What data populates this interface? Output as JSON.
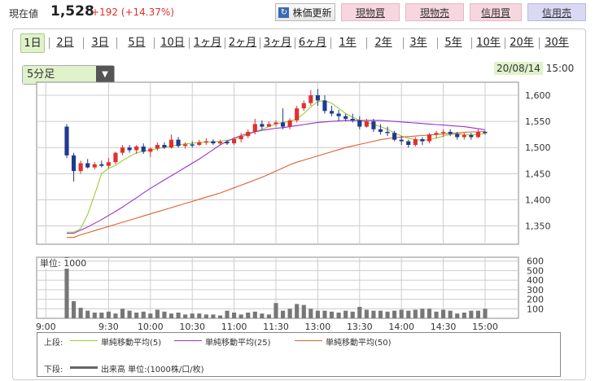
{
  "header": {
    "price_label": "現在値",
    "price": "1,528",
    "change": "+192 (+14.37%)",
    "buttons": {
      "refresh": "株価更新",
      "buy_cash": "現物買",
      "sell_cash": "現物売",
      "buy_margin": "信用買",
      "sell_margin": "信用売"
    }
  },
  "tabs": [
    "1日",
    "2日",
    "3日",
    "5日",
    "10日",
    "1ヶ月",
    "2ヶ月",
    "3ヶ月",
    "6ヶ月",
    "1年",
    "2年",
    "3年",
    "5年",
    "10年",
    "20年",
    "30年"
  ],
  "interval": "5分足",
  "date": "20/08/14",
  "time": "15:00",
  "legend": {
    "upper_label": "上段:",
    "lower_label": "下段:",
    "ma5": "単純移動平均(5)",
    "ma25": "単純移動平均(25)",
    "ma50": "単純移動平均(50)",
    "volume": "出来高 単位:(1000株/口/枚)"
  },
  "colors": {
    "up": "#e03030",
    "down": "#1f3a8f",
    "ma5": "#9acd32",
    "ma25": "#9932cc",
    "ma50": "#e06030",
    "volume": "#777777"
  },
  "chart_data": {
    "type": "candlestick",
    "x_ticks": [
      "9:00",
      "9:30",
      "10:00",
      "10:30",
      "11:00",
      "11:30",
      "13:00",
      "13:30",
      "14:00",
      "14:30",
      "15:00"
    ],
    "price_axis": {
      "ticks": [
        1350,
        1400,
        1450,
        1500,
        1550,
        1600
      ],
      "range": [
        1315,
        1625
      ]
    },
    "volume_axis": {
      "ticks": [
        100,
        200,
        300,
        400,
        500,
        600
      ],
      "range": [
        0,
        640
      ],
      "unit_label": "単位: 1000"
    },
    "candles": [
      {
        "t": "9:05",
        "o": 1540,
        "h": 1545,
        "l": 1480,
        "c": 1485
      },
      {
        "t": "9:10",
        "o": 1485,
        "h": 1490,
        "l": 1435,
        "c": 1455
      },
      {
        "t": "9:15",
        "o": 1455,
        "h": 1475,
        "l": 1450,
        "c": 1470
      },
      {
        "t": "9:20",
        "o": 1470,
        "h": 1478,
        "l": 1460,
        "c": 1462
      },
      {
        "t": "9:25",
        "o": 1462,
        "h": 1472,
        "l": 1458,
        "c": 1468
      },
      {
        "t": "9:30",
        "o": 1468,
        "h": 1475,
        "l": 1462,
        "c": 1465
      },
      {
        "t": "9:35",
        "o": 1465,
        "h": 1480,
        "l": 1460,
        "c": 1472
      },
      {
        "t": "9:40",
        "o": 1472,
        "h": 1492,
        "l": 1468,
        "c": 1490
      },
      {
        "t": "9:45",
        "o": 1490,
        "h": 1505,
        "l": 1485,
        "c": 1500
      },
      {
        "t": "9:50",
        "o": 1500,
        "h": 1505,
        "l": 1490,
        "c": 1495
      },
      {
        "t": "9:55",
        "o": 1495,
        "h": 1505,
        "l": 1488,
        "c": 1502
      },
      {
        "t": "10:00",
        "o": 1502,
        "h": 1508,
        "l": 1488,
        "c": 1492
      },
      {
        "t": "10:05",
        "o": 1492,
        "h": 1500,
        "l": 1482,
        "c": 1498
      },
      {
        "t": "10:10",
        "o": 1498,
        "h": 1510,
        "l": 1494,
        "c": 1505
      },
      {
        "t": "10:15",
        "o": 1505,
        "h": 1510,
        "l": 1497,
        "c": 1500
      },
      {
        "t": "10:20",
        "o": 1500,
        "h": 1525,
        "l": 1498,
        "c": 1515
      },
      {
        "t": "10:25",
        "o": 1515,
        "h": 1520,
        "l": 1500,
        "c": 1503
      },
      {
        "t": "10:30",
        "o": 1503,
        "h": 1510,
        "l": 1498,
        "c": 1506
      },
      {
        "t": "10:35",
        "o": 1506,
        "h": 1512,
        "l": 1500,
        "c": 1505
      },
      {
        "t": "10:40",
        "o": 1505,
        "h": 1515,
        "l": 1503,
        "c": 1510
      },
      {
        "t": "10:45",
        "o": 1510,
        "h": 1518,
        "l": 1505,
        "c": 1512
      },
      {
        "t": "10:50",
        "o": 1512,
        "h": 1516,
        "l": 1505,
        "c": 1508
      },
      {
        "t": "10:55",
        "o": 1508,
        "h": 1515,
        "l": 1505,
        "c": 1511
      },
      {
        "t": "11:00",
        "o": 1511,
        "h": 1514,
        "l": 1505,
        "c": 1508
      },
      {
        "t": "11:05",
        "o": 1508,
        "h": 1520,
        "l": 1505,
        "c": 1516
      },
      {
        "t": "11:10",
        "o": 1516,
        "h": 1528,
        "l": 1510,
        "c": 1522
      },
      {
        "t": "11:15",
        "o": 1522,
        "h": 1535,
        "l": 1518,
        "c": 1530
      },
      {
        "t": "11:20",
        "o": 1530,
        "h": 1555,
        "l": 1525,
        "c": 1545
      },
      {
        "t": "11:25",
        "o": 1545,
        "h": 1552,
        "l": 1535,
        "c": 1540
      },
      {
        "t": "11:30",
        "o": 1540,
        "h": 1550,
        "l": 1540,
        "c": 1545
      },
      {
        "t": "12:30",
        "o": 1545,
        "h": 1552,
        "l": 1540,
        "c": 1548
      },
      {
        "t": "12:35",
        "o": 1548,
        "h": 1575,
        "l": 1535,
        "c": 1540
      },
      {
        "t": "12:40",
        "o": 1540,
        "h": 1556,
        "l": 1535,
        "c": 1552
      },
      {
        "t": "12:45",
        "o": 1552,
        "h": 1580,
        "l": 1548,
        "c": 1575
      },
      {
        "t": "12:50",
        "o": 1575,
        "h": 1590,
        "l": 1570,
        "c": 1585
      },
      {
        "t": "12:55",
        "o": 1585,
        "h": 1610,
        "l": 1580,
        "c": 1600
      },
      {
        "t": "13:00",
        "o": 1600,
        "h": 1612,
        "l": 1580,
        "c": 1590
      },
      {
        "t": "13:05",
        "o": 1590,
        "h": 1600,
        "l": 1565,
        "c": 1570
      },
      {
        "t": "13:10",
        "o": 1570,
        "h": 1580,
        "l": 1560,
        "c": 1565
      },
      {
        "t": "13:15",
        "o": 1565,
        "h": 1572,
        "l": 1550,
        "c": 1560
      },
      {
        "t": "13:20",
        "o": 1560,
        "h": 1565,
        "l": 1550,
        "c": 1555
      },
      {
        "t": "13:25",
        "o": 1555,
        "h": 1565,
        "l": 1548,
        "c": 1552
      },
      {
        "t": "13:30",
        "o": 1552,
        "h": 1560,
        "l": 1535,
        "c": 1540
      },
      {
        "t": "13:35",
        "o": 1540,
        "h": 1555,
        "l": 1538,
        "c": 1550
      },
      {
        "t": "13:40",
        "o": 1550,
        "h": 1555,
        "l": 1530,
        "c": 1535
      },
      {
        "t": "13:45",
        "o": 1535,
        "h": 1545,
        "l": 1525,
        "c": 1530
      },
      {
        "t": "13:50",
        "o": 1530,
        "h": 1540,
        "l": 1522,
        "c": 1528
      },
      {
        "t": "13:55",
        "o": 1528,
        "h": 1532,
        "l": 1512,
        "c": 1515
      },
      {
        "t": "14:00",
        "o": 1515,
        "h": 1522,
        "l": 1505,
        "c": 1512
      },
      {
        "t": "14:05",
        "o": 1512,
        "h": 1515,
        "l": 1500,
        "c": 1505
      },
      {
        "t": "14:10",
        "o": 1505,
        "h": 1520,
        "l": 1502,
        "c": 1516
      },
      {
        "t": "14:15",
        "o": 1516,
        "h": 1520,
        "l": 1505,
        "c": 1512
      },
      {
        "t": "14:20",
        "o": 1512,
        "h": 1528,
        "l": 1508,
        "c": 1525
      },
      {
        "t": "14:25",
        "o": 1525,
        "h": 1532,
        "l": 1518,
        "c": 1528
      },
      {
        "t": "14:30",
        "o": 1528,
        "h": 1535,
        "l": 1520,
        "c": 1530
      },
      {
        "t": "14:35",
        "o": 1530,
        "h": 1535,
        "l": 1522,
        "c": 1526
      },
      {
        "t": "14:40",
        "o": 1526,
        "h": 1530,
        "l": 1515,
        "c": 1520
      },
      {
        "t": "14:45",
        "o": 1520,
        "h": 1528,
        "l": 1515,
        "c": 1524
      },
      {
        "t": "14:50",
        "o": 1524,
        "h": 1528,
        "l": 1515,
        "c": 1520
      },
      {
        "t": "14:55",
        "o": 1520,
        "h": 1535,
        "l": 1518,
        "c": 1530
      },
      {
        "t": "15:00",
        "o": 1530,
        "h": 1532,
        "l": 1525,
        "c": 1528
      }
    ],
    "ma5": [
      1338,
      1338,
      1345,
      1372,
      1410,
      1450,
      1460,
      1466,
      1475,
      1483,
      1490,
      1493,
      1495,
      1498,
      1500,
      1503,
      1505,
      1507,
      1508,
      1510,
      1510,
      1511,
      1512,
      1514,
      1516,
      1520,
      1525,
      1530,
      1535,
      1540,
      1545,
      1548,
      1550,
      1555,
      1565,
      1578,
      1588,
      1590,
      1585,
      1575,
      1565,
      1558,
      1552,
      1548,
      1545,
      1540,
      1535,
      1528,
      1522,
      1518,
      1515,
      1514,
      1515,
      1518,
      1522,
      1525,
      1526,
      1525,
      1524,
      1525,
      1527
    ],
    "ma25": [
      1336,
      1336,
      1342,
      1348,
      1355,
      1362,
      1370,
      1378,
      1386,
      1395,
      1404,
      1413,
      1422,
      1430,
      1438,
      1446,
      1454,
      1462,
      1470,
      1478,
      1487,
      1496,
      1505,
      1512,
      1518,
      1523,
      1527,
      1530,
      1533,
      1535,
      1537,
      1538,
      1540,
      1542,
      1544,
      1546,
      1548,
      1549,
      1550,
      1551,
      1552,
      1552,
      1552,
      1552,
      1552,
      1552,
      1551,
      1550,
      1549,
      1548,
      1547,
      1546,
      1545,
      1544,
      1543,
      1542,
      1541,
      1540,
      1538,
      1536,
      1534
    ],
    "ma50": [
      1328,
      1328,
      1333,
      1337,
      1341,
      1345,
      1349,
      1353,
      1357,
      1361,
      1365,
      1369,
      1373,
      1377,
      1381,
      1385,
      1389,
      1393,
      1397,
      1401,
      1405,
      1409,
      1413,
      1418,
      1423,
      1428,
      1433,
      1438,
      1443,
      1449,
      1455,
      1461,
      1467,
      1472,
      1476,
      1480,
      1484,
      1488,
      1492,
      1496,
      1500,
      1503,
      1506,
      1509,
      1512,
      1515,
      1517,
      1519,
      1520,
      1521,
      1522,
      1523,
      1524,
      1525,
      1526,
      1527,
      1528,
      1529,
      1530,
      1530,
      1531
    ],
    "volume": [
      640,
      180,
      110,
      80,
      60,
      60,
      70,
      50,
      100,
      80,
      60,
      70,
      50,
      90,
      70,
      50,
      60,
      40,
      50,
      50,
      40,
      40,
      30,
      80,
      60,
      40,
      60,
      70,
      50,
      40,
      160,
      80,
      100,
      150,
      140,
      100,
      80,
      80,
      70,
      60,
      80,
      70,
      120,
      90,
      80,
      80,
      70,
      80,
      90,
      80,
      90,
      100,
      100,
      70,
      90,
      80,
      50,
      60,
      80,
      80,
      100
    ]
  }
}
